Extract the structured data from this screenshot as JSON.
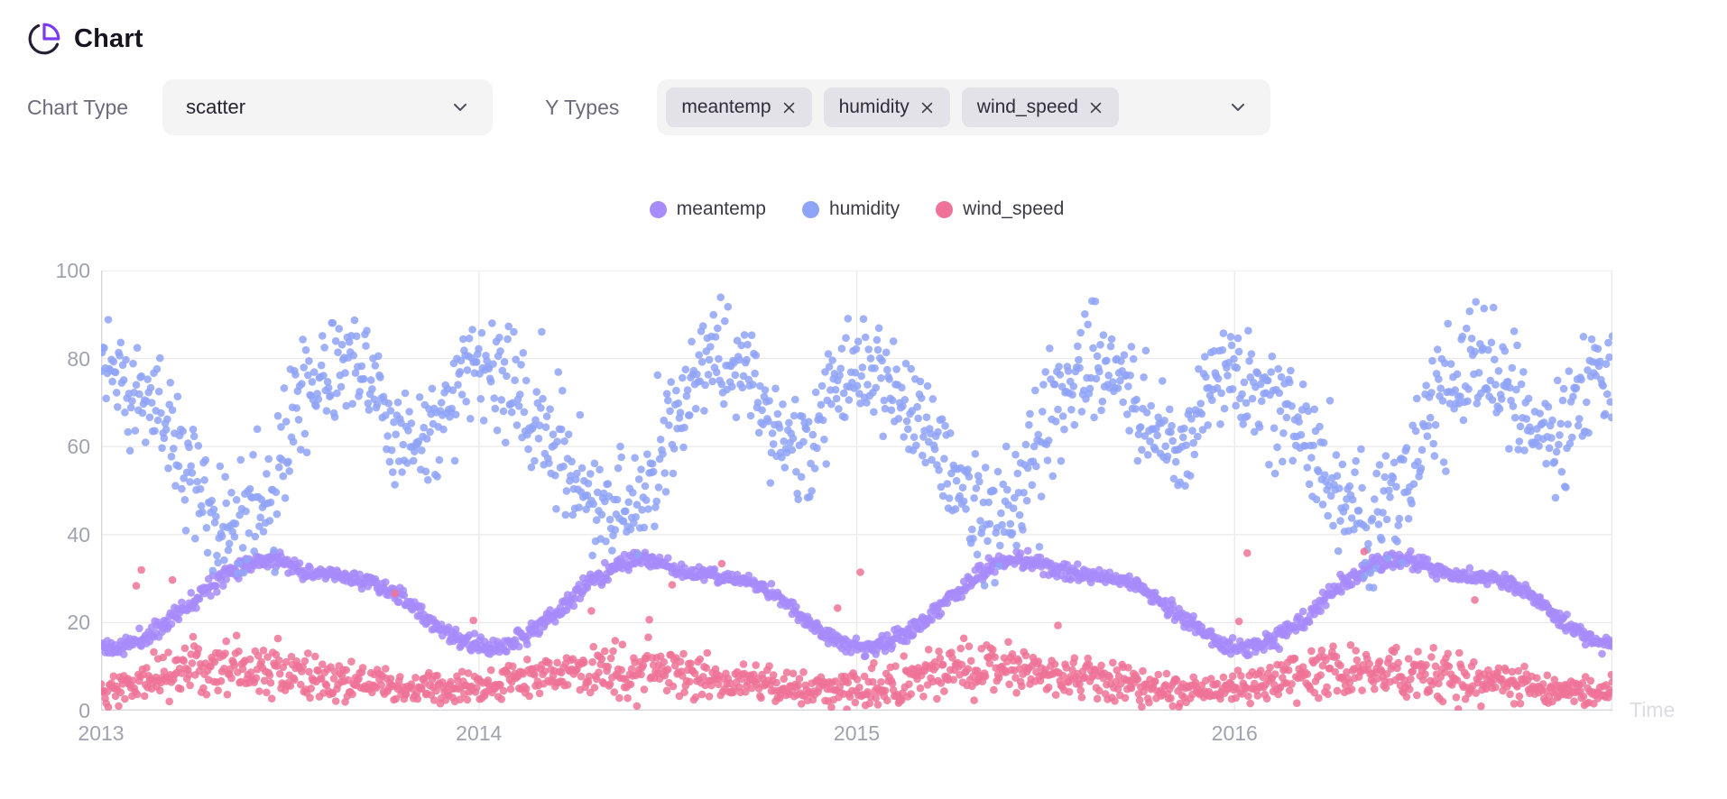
{
  "header": {
    "title": "Chart",
    "icon": "pie-chart"
  },
  "controls": {
    "chart_type": {
      "label": "Chart Type",
      "value": "scatter"
    },
    "y_types": {
      "label": "Y Types",
      "selected": [
        "meantemp",
        "humidity",
        "wind_speed"
      ],
      "remove_icon": "x"
    }
  },
  "colors": {
    "accent": "#7c3aed",
    "grid": "#ebebee",
    "axis": "#d7d7db",
    "tick_text": "#a0a2ae"
  },
  "chart_data": {
    "type": "scatter",
    "title": "",
    "x_axis": {
      "label": "Time",
      "ticks": [
        "2013",
        "2014",
        "2015",
        "2016"
      ],
      "range": [
        2013,
        2017
      ]
    },
    "y_axis": {
      "ticks": [
        0,
        20,
        40,
        60,
        80,
        100
      ],
      "range": [
        0,
        100
      ]
    },
    "grid": true,
    "legend_position": "top-center",
    "points_per_series": 1462,
    "seed": 11,
    "point_radius": 4.3,
    "point_opacity": 0.85,
    "series": [
      {
        "name": "meantemp",
        "color": "#a78bfa",
        "monthly_mean": [
          14,
          17,
          22.5,
          29,
          33.5,
          34.5,
          31.5,
          30.5,
          29.5,
          26,
          20,
          15.5
        ],
        "monthly_spread": [
          1.7,
          1.8,
          1.8,
          1.8,
          1.7,
          1.7,
          1.4,
          1.3,
          1.4,
          1.5,
          1.7,
          1.7
        ],
        "clip": [
          9.5,
          39.5
        ],
        "spike_prob": 0,
        "spike_add": [
          0,
          0
        ]
      },
      {
        "name": "humidity",
        "color": "#8fa3f7",
        "monthly_mean": [
          78,
          70,
          60,
          47,
          43,
          52,
          72,
          80,
          76,
          62,
          62,
          76
        ],
        "monthly_spread": [
          11,
          12,
          12,
          12,
          12,
          13,
          13,
          11,
          11,
          11,
          10,
          10
        ],
        "clip": [
          13,
          100
        ],
        "spike_prob": 0,
        "spike_add": [
          0,
          0
        ]
      },
      {
        "name": "wind_speed",
        "color": "#ef7396",
        "monthly_mean": [
          5.5,
          7,
          8.5,
          9.5,
          9.5,
          9,
          8,
          7,
          6.5,
          5,
          4.5,
          5
        ],
        "monthly_spread": [
          3.5,
          4,
          4.5,
          5,
          5,
          5,
          4.5,
          4,
          3.5,
          3,
          3,
          3.2
        ],
        "clip": [
          0.2,
          43
        ],
        "spike_prob": 0.008,
        "spike_add": [
          5,
          30
        ]
      }
    ]
  }
}
